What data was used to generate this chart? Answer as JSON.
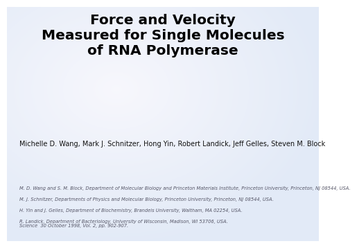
{
  "title_line1": "Force and Velocity",
  "title_line2": "Measured for Single Molecules",
  "title_line3": "of RNA Polymerase",
  "authors": "Michelle D. Wang, Mark J. Schnitzer, Hong Yin, Robert Landick, Jeff Gelles, Steven M. Block",
  "affil1": "M. D. Wang and S. M. Block, Department of Molecular Biology and Princeton Materials Institute, Princeton University, Princeton, NJ 08544, USA.",
  "affil2": "M. J. Schnitzer, Departments of Physics and Molecular Biology, Princeton University, Princeton, NJ 08544, USA.",
  "affil3": "H. Yin and J. Gelles, Department of Biochemistry, Brandeis University, Waltham, MA 02254, USA.",
  "affil4": "R. Landick, Department of Bacteriology, University of Wisconsin, Madison, WI 53706, USA.",
  "citation": "Science  30 October 1998, Vol. 2, pp. 902-907.",
  "title_color": "#000000",
  "authors_color": "#111111",
  "affil_color": "#555566",
  "citation_color": "#555566",
  "title_fontsize": 14.5,
  "authors_fontsize": 7.0,
  "affil_fontsize": 4.8,
  "citation_fontsize": 4.9
}
